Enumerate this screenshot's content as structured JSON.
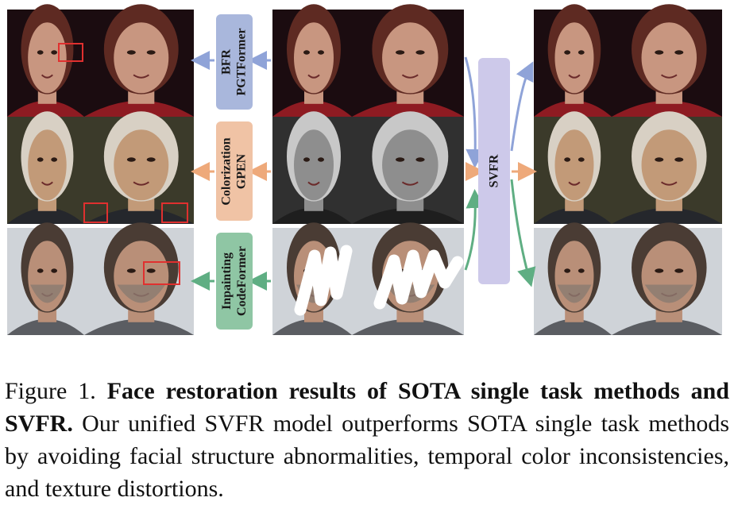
{
  "figure": {
    "methods": [
      {
        "task": "BFR",
        "model": "PGTFormer",
        "color": "#a9b7dc",
        "arrow_color": "#8fa3d8"
      },
      {
        "task": "Colorization",
        "model": "GPEN",
        "color": "#f0c3a5",
        "arrow_color": "#eea97a"
      },
      {
        "task": "Inpainting",
        "model": "CodeFormer",
        "color": "#8fc6a4",
        "arrow_color": "#5fae83"
      }
    ],
    "svfr": {
      "label": "SVFR",
      "color": "#cdc9ea"
    },
    "rows": [
      {
        "name": "bfr",
        "bg": "#1b0c10",
        "skin": "#c89680",
        "hair": "#5e2a22",
        "cloth": "#8e1b22"
      },
      {
        "name": "colorization",
        "bg": "#3b3a2a",
        "skin": "#c29a78",
        "hair": "#d8d0c4",
        "cloth": "#25272c"
      },
      {
        "name": "inpainting",
        "bg": "#cfd3d8",
        "skin": "#b98f78",
        "hair": "#4a3c34",
        "cloth": "#5b5d62"
      }
    ],
    "highlight_color": "#e0302f"
  },
  "caption": {
    "prefix": "Figure 1. ",
    "bold": "Face restoration results of SOTA single task methods and SVFR.",
    "rest": " Our unified SVFR model outperforms SOTA single task methods by avoiding facial structure abnormalities, temporal color inconsistencies, and texture distortions."
  }
}
